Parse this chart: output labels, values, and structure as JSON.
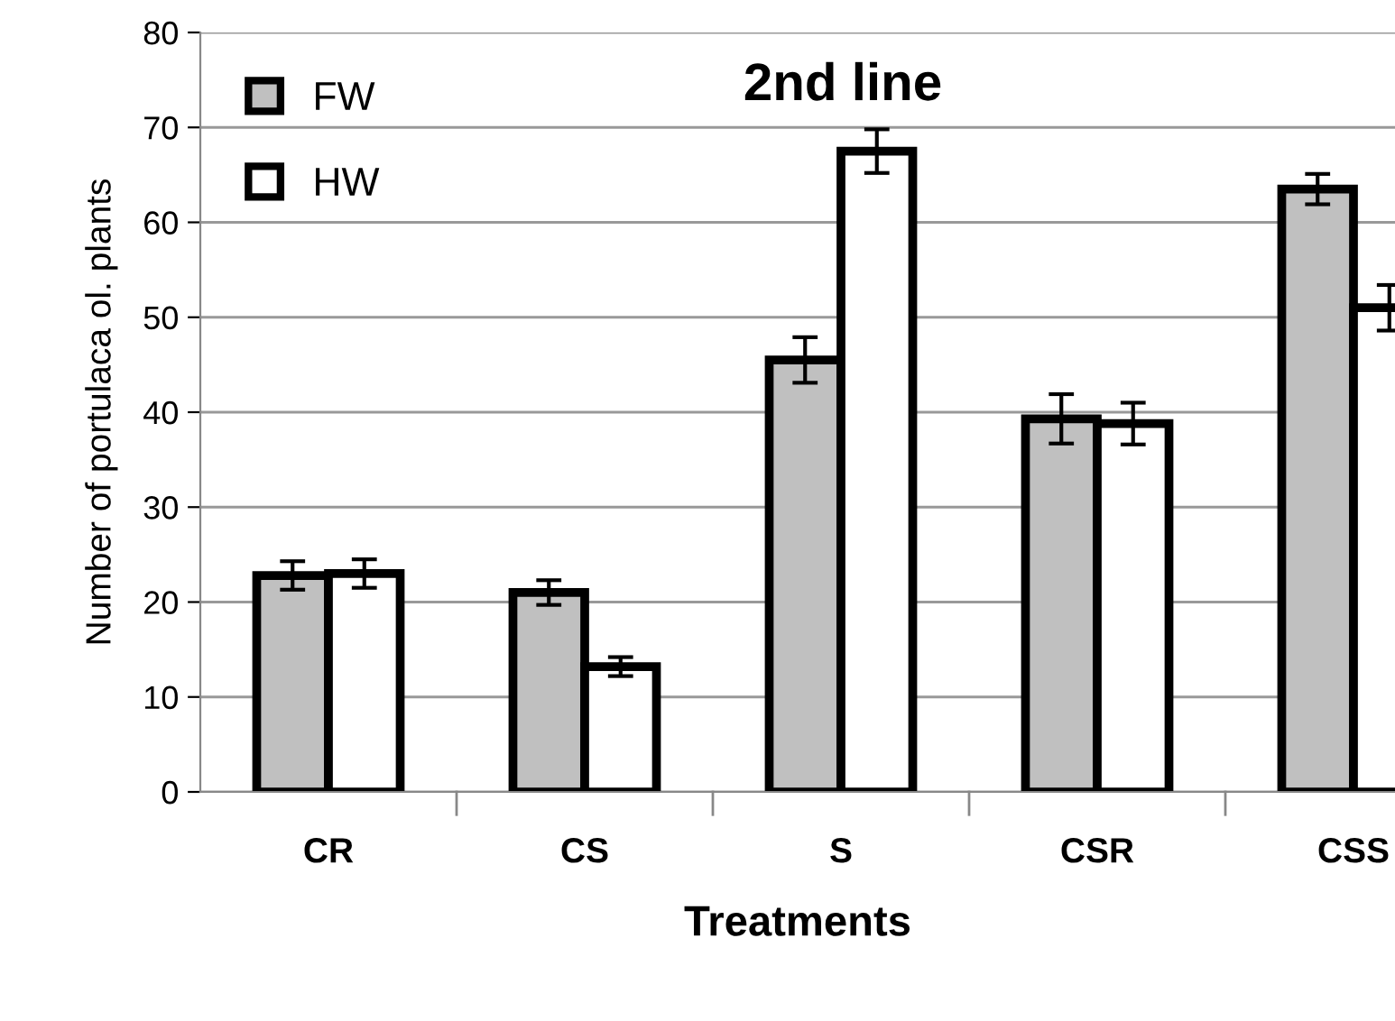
{
  "chart_data": {
    "type": "bar",
    "title": "2nd line",
    "xlabel": "Treatments",
    "ylabel": "Number of portulaca ol. plants",
    "categories": [
      "CR",
      "CS",
      "S",
      "CSR",
      "CSS"
    ],
    "series": [
      {
        "name": "FW",
        "color": "#c0c0c0",
        "values": [
          22.8,
          21,
          45.5,
          39.3,
          63.5
        ],
        "errors": [
          1.5,
          1.3,
          2.4,
          2.6,
          1.6
        ]
      },
      {
        "name": "HW",
        "color": "#ffffff",
        "values": [
          23,
          13.2,
          67.5,
          38.8,
          51
        ],
        "errors": [
          1.5,
          1,
          2.3,
          2.2,
          2.4
        ]
      }
    ],
    "ylim": [
      0,
      80
    ],
    "yticks": [
      0,
      10,
      20,
      30,
      40,
      50,
      60,
      70,
      80
    ],
    "grid": "y",
    "legend": "top left"
  }
}
